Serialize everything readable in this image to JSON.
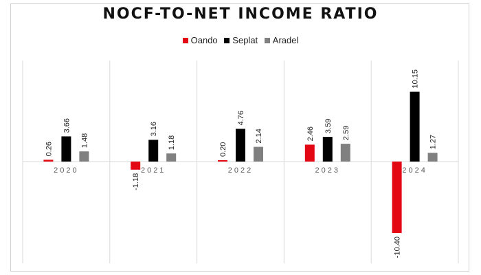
{
  "chart_data": {
    "type": "bar",
    "title": "NOCF-TO-NET INCOME RATIO",
    "categories": [
      "2020",
      "2021",
      "2022",
      "2023",
      "2024"
    ],
    "series": [
      {
        "name": "Oando",
        "color": "#e30613",
        "values": [
          0.26,
          -1.18,
          0.2,
          2.46,
          -10.4
        ],
        "labels": [
          "0.26",
          "-1.18",
          "0.20",
          "2.46",
          "-10.40"
        ]
      },
      {
        "name": "Seplat",
        "color": "#000000",
        "values": [
          3.66,
          3.16,
          4.76,
          3.59,
          10.15
        ],
        "labels": [
          "3.66",
          "3.16",
          "4.76",
          "3.59",
          "10.15"
        ]
      },
      {
        "name": "Aradel",
        "color": "#808080",
        "values": [
          1.48,
          1.18,
          2.14,
          2.59,
          1.27
        ],
        "labels": [
          "1.48",
          "1.18",
          "2.14",
          "2.59",
          "1.27"
        ]
      }
    ],
    "legend_position": "top",
    "grid": false
  }
}
